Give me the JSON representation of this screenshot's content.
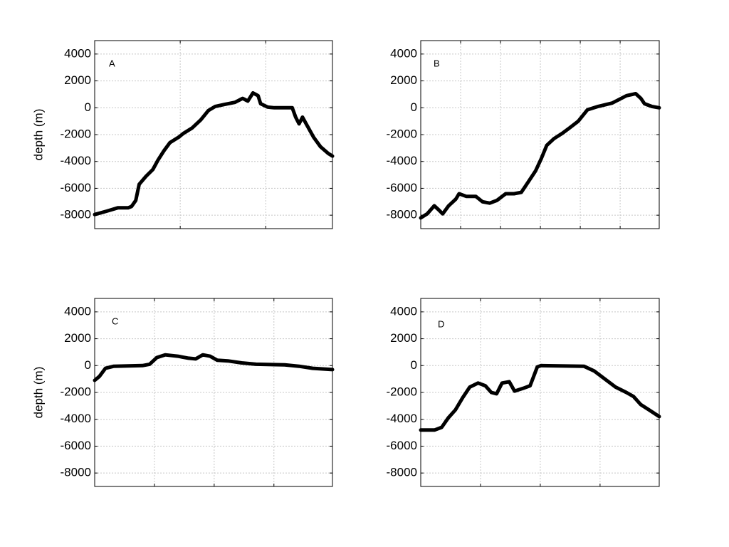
{
  "chart_data": [
    {
      "type": "line",
      "annotation": "A",
      "ylabel": "depth (m)",
      "color": "#000000",
      "grid": true,
      "xlim": [
        0,
        2.78
      ],
      "xticks": [
        1,
        2
      ],
      "ylim": [
        -9000,
        5000
      ],
      "yticks": [
        -8000,
        -6000,
        -4000,
        -2000,
        0,
        2000,
        4000
      ],
      "x": [
        0,
        0.14,
        0.27,
        0.39,
        0.43,
        0.48,
        0.52,
        0.6,
        0.68,
        0.74,
        0.81,
        0.88,
        0.98,
        1.04,
        1.14,
        1.24,
        1.33,
        1.41,
        1.52,
        1.64,
        1.73,
        1.79,
        1.85,
        1.91,
        1.94,
        2.02,
        2.1,
        2.31,
        2.35,
        2.39,
        2.43,
        2.49,
        2.56,
        2.64,
        2.73,
        2.78
      ],
      "values": [
        -7950,
        -7700,
        -7450,
        -7450,
        -7350,
        -6900,
        -5700,
        -5100,
        -4600,
        -3900,
        -3200,
        -2600,
        -2200,
        -1900,
        -1500,
        -900,
        -200,
        100,
        250,
        400,
        700,
        500,
        1100,
        900,
        300,
        50,
        0,
        0,
        -700,
        -1200,
        -700,
        -1400,
        -2200,
        -2900,
        -3400,
        -3600
      ]
    },
    {
      "type": "line",
      "annotation": "B",
      "color": "#000000",
      "grid": true,
      "xlim": [
        0,
        5.98
      ],
      "xticks": [
        1,
        2,
        3,
        4,
        5
      ],
      "ylim": [
        -9000,
        5000
      ],
      "yticks": [
        -8000,
        -6000,
        -4000,
        -2000,
        0,
        2000,
        4000
      ],
      "x": [
        0,
        0.16,
        0.34,
        0.45,
        0.55,
        0.7,
        0.88,
        0.96,
        1.14,
        1.38,
        1.55,
        1.73,
        1.91,
        2.13,
        2.34,
        2.52,
        2.7,
        2.88,
        3.02,
        3.16,
        3.34,
        3.55,
        3.73,
        3.95,
        4.18,
        4.45,
        4.8,
        5.16,
        5.39,
        5.52,
        5.61,
        5.79,
        5.98
      ],
      "values": [
        -8200,
        -7900,
        -7300,
        -7600,
        -7900,
        -7300,
        -6800,
        -6400,
        -6600,
        -6600,
        -7000,
        -7100,
        -6900,
        -6400,
        -6400,
        -6300,
        -5500,
        -4700,
        -3800,
        -2800,
        -2300,
        -1900,
        -1500,
        -1000,
        -150,
        100,
        350,
        900,
        1050,
        700,
        300,
        100,
        0
      ]
    },
    {
      "type": "line",
      "annotation": "C",
      "ylabel": "depth (m)",
      "color": "#000000",
      "grid": true,
      "xlim": [
        0,
        3.98
      ],
      "xticks": [
        1,
        2,
        3
      ],
      "ylim": [
        -9000,
        5000
      ],
      "yticks": [
        -8000,
        -6000,
        -4000,
        -2000,
        0,
        2000,
        4000
      ],
      "x": [
        0,
        0.08,
        0.18,
        0.32,
        0.8,
        0.92,
        1.04,
        1.18,
        1.39,
        1.57,
        1.69,
        1.81,
        1.93,
        2.05,
        2.23,
        2.46,
        2.7,
        3.18,
        3.42,
        3.65,
        3.98
      ],
      "values": [
        -1100,
        -800,
        -200,
        -50,
        0,
        100,
        600,
        800,
        700,
        550,
        500,
        800,
        700,
        400,
        350,
        200,
        100,
        50,
        -50,
        -200,
        -300
      ]
    },
    {
      "type": "line",
      "annotation": "D",
      "color": "#000000",
      "grid": true,
      "xlim": [
        0,
        3.99
      ],
      "xticks": [
        1,
        2,
        3
      ],
      "ylim": [
        -9000,
        5000
      ],
      "yticks": [
        -8000,
        -6000,
        -4000,
        -2000,
        0,
        2000,
        4000
      ],
      "x": [
        0,
        0.23,
        0.35,
        0.46,
        0.58,
        0.7,
        0.82,
        0.96,
        1.08,
        1.18,
        1.27,
        1.36,
        1.48,
        1.57,
        1.71,
        1.83,
        1.95,
        2.01,
        2.73,
        2.9,
        3.08,
        3.26,
        3.44,
        3.56,
        3.68,
        3.82,
        3.99
      ],
      "values": [
        -4800,
        -4800,
        -4600,
        -3900,
        -3300,
        -2400,
        -1600,
        -1300,
        -1500,
        -2000,
        -2100,
        -1300,
        -1200,
        -1900,
        -1700,
        -1500,
        -100,
        0,
        -50,
        -400,
        -1000,
        -1600,
        -2000,
        -2300,
        -2900,
        -3300,
        -3800
      ]
    }
  ]
}
